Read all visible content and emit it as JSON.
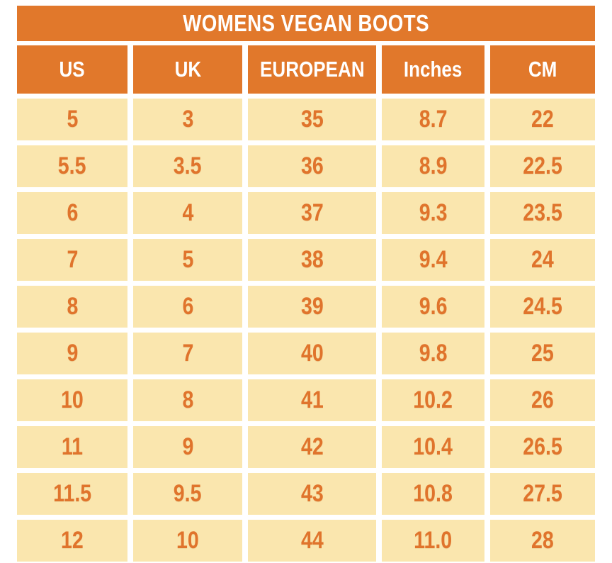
{
  "title": "WOMENS VEGAN BOOTS",
  "colors": {
    "header_orange": "#e1782b",
    "cell_cream": "#fae6ae",
    "cell_text_orange": "#e0742c",
    "header_text": "#ffffff",
    "background": "#ffffff"
  },
  "chart_data": {
    "type": "table",
    "title": "WOMENS VEGAN BOOTS",
    "columns": [
      "US",
      "UK",
      "EUROPEAN",
      "Inches",
      "CM"
    ],
    "rows": [
      [
        "5",
        "3",
        "35",
        "8.7",
        "22"
      ],
      [
        "5.5",
        "3.5",
        "36",
        "8.9",
        "22.5"
      ],
      [
        "6",
        "4",
        "37",
        "9.3",
        "23.5"
      ],
      [
        "7",
        "5",
        "38",
        "9.4",
        "24"
      ],
      [
        "8",
        "6",
        "39",
        "9.6",
        "24.5"
      ],
      [
        "9",
        "7",
        "40",
        "9.8",
        "25"
      ],
      [
        "10",
        "8",
        "41",
        "10.2",
        "26"
      ],
      [
        "11",
        "9",
        "42",
        "10.4",
        "26.5"
      ],
      [
        "11.5",
        "9.5",
        "43",
        "10.8",
        "27.5"
      ],
      [
        "12",
        "10",
        "44",
        "11.0",
        "28"
      ]
    ]
  }
}
